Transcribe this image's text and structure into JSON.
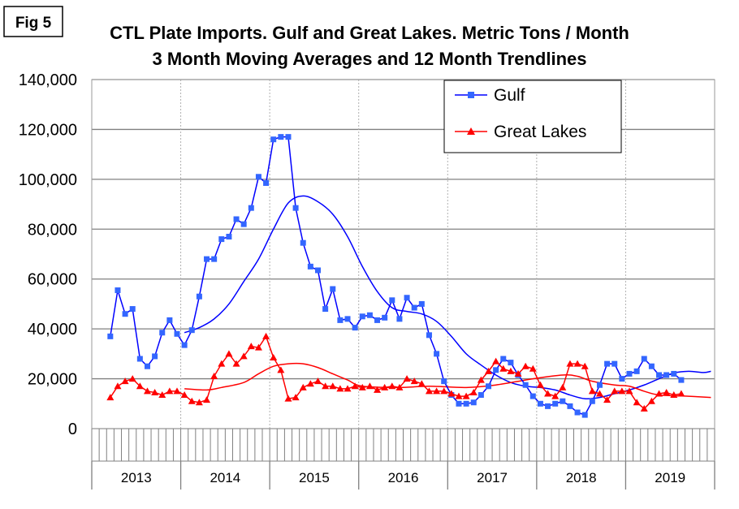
{
  "figure_label": "Fig 5",
  "chart_data": {
    "type": "line",
    "title": "CTL Plate Imports. Gulf and Great Lakes. Metric Tons / Month",
    "subtitle": "3 Month Moving Averages and 12 Month Trendlines",
    "xlabel": "",
    "ylabel": "",
    "ylim": [
      0,
      140000
    ],
    "yticks": [
      "0",
      "20,000",
      "40,000",
      "60,000",
      "80,000",
      "100,000",
      "120,000",
      "140,000"
    ],
    "xticks": [
      "2013",
      "2014",
      "2015",
      "2016",
      "2017",
      "2018",
      "2019"
    ],
    "grid": "horizontal",
    "legend_position": "top-right",
    "x_start": "2013-03",
    "series": [
      {
        "name": "Gulf",
        "color": "#0000ff",
        "marker": "square",
        "marker_color": "#3366ff",
        "values": [
          37000,
          55500,
          46000,
          48000,
          28000,
          25000,
          29000,
          38500,
          43500,
          38000,
          33500,
          39500,
          53000,
          68000,
          68000,
          76000,
          77000,
          84000,
          82000,
          88500,
          101000,
          98500,
          116000,
          117000,
          117000,
          88500,
          74500,
          65000,
          63500,
          48000,
          56000,
          43500,
          44000,
          40500,
          45000,
          45500,
          43500,
          44500,
          51500,
          44000,
          52500,
          48500,
          50000,
          37500,
          30000,
          19000,
          13500,
          10000,
          10000,
          10500,
          13500,
          17000,
          23500,
          28000,
          26500,
          21500,
          17500,
          13000,
          10000,
          9000,
          10000,
          11000,
          9000,
          6500,
          5500,
          11000,
          17500,
          26000,
          26000,
          20000,
          22000,
          23000,
          28000,
          25000,
          21500,
          21500,
          22000,
          19500
        ]
      },
      {
        "name": "Great Lakes",
        "color": "#ff0000",
        "marker": "triangle",
        "marker_color": "#ff0000",
        "values": [
          12500,
          17000,
          19000,
          20000,
          17000,
          15000,
          14500,
          13500,
          15000,
          15000,
          13500,
          11000,
          10500,
          11500,
          21000,
          26000,
          30000,
          26000,
          29000,
          33000,
          32500,
          37000,
          28500,
          23500,
          12000,
          12500,
          16500,
          18000,
          19000,
          17000,
          17000,
          16000,
          16000,
          17000,
          16500,
          17000,
          15500,
          16500,
          17000,
          16500,
          20000,
          19000,
          18000,
          15000,
          15000,
          15000,
          14000,
          13000,
          13000,
          14500,
          19500,
          23000,
          27000,
          24000,
          23000,
          22000,
          25000,
          24000,
          17500,
          14000,
          13000,
          16500,
          26000,
          26000,
          25000,
          15000,
          14000,
          11500,
          15000,
          15000,
          15000,
          10500,
          8000,
          11000,
          14000,
          14500,
          13500,
          14000
        ]
      }
    ],
    "trendlines": [
      {
        "series": "Gulf",
        "color": "#0000ff",
        "points": [
          [
            "2014-01",
            38500
          ],
          [
            "2014-03",
            40500
          ],
          [
            "2014-05",
            44000
          ],
          [
            "2014-07",
            50000
          ],
          [
            "2014-09",
            59000
          ],
          [
            "2014-11",
            68000
          ],
          [
            "2015-01",
            80000
          ],
          [
            "2015-03",
            90500
          ],
          [
            "2015-05",
            93300
          ],
          [
            "2015-07",
            91000
          ],
          [
            "2015-09",
            86000
          ],
          [
            "2015-11",
            77000
          ],
          [
            "2016-01",
            65000
          ],
          [
            "2016-03",
            55000
          ],
          [
            "2016-05",
            48500
          ],
          [
            "2016-07",
            47000
          ],
          [
            "2016-09",
            46000
          ],
          [
            "2016-11",
            43000
          ],
          [
            "2017-01",
            37000
          ],
          [
            "2017-03",
            30000
          ],
          [
            "2017-05",
            25500
          ],
          [
            "2017-07",
            21500
          ],
          [
            "2017-09",
            18500
          ],
          [
            "2017-11",
            17000
          ],
          [
            "2018-01",
            16500
          ],
          [
            "2018-03",
            15500
          ],
          [
            "2018-05",
            13500
          ],
          [
            "2018-07",
            12000
          ],
          [
            "2018-09",
            12500
          ],
          [
            "2018-11",
            14000
          ],
          [
            "2019-01",
            15500
          ],
          [
            "2019-03",
            17500
          ],
          [
            "2019-05",
            20000
          ],
          [
            "2019-07",
            22300
          ],
          [
            "2019-09",
            23000
          ],
          [
            "2019-11",
            22500
          ],
          [
            "2019-12",
            23000
          ]
        ]
      },
      {
        "series": "Great Lakes",
        "color": "#ff0000",
        "points": [
          [
            "2014-01",
            16000
          ],
          [
            "2014-04",
            15500
          ],
          [
            "2014-06",
            16500
          ],
          [
            "2014-09",
            18500
          ],
          [
            "2014-11",
            22000
          ],
          [
            "2015-01",
            25000
          ],
          [
            "2015-03",
            26000
          ],
          [
            "2015-05",
            26000
          ],
          [
            "2015-07",
            24500
          ],
          [
            "2015-09",
            22000
          ],
          [
            "2015-11",
            19500
          ],
          [
            "2016-01",
            17000
          ],
          [
            "2016-06",
            16500
          ],
          [
            "2016-10",
            17000
          ],
          [
            "2017-03",
            16500
          ],
          [
            "2017-07",
            17500
          ],
          [
            "2017-12",
            20000
          ],
          [
            "2018-04",
            21500
          ],
          [
            "2018-06",
            21000
          ],
          [
            "2018-08",
            19000
          ],
          [
            "2018-11",
            17500
          ],
          [
            "2019-01",
            17000
          ],
          [
            "2019-03",
            15000
          ],
          [
            "2019-05",
            13500
          ],
          [
            "2019-09",
            13000
          ],
          [
            "2019-12",
            12500
          ]
        ]
      }
    ]
  }
}
